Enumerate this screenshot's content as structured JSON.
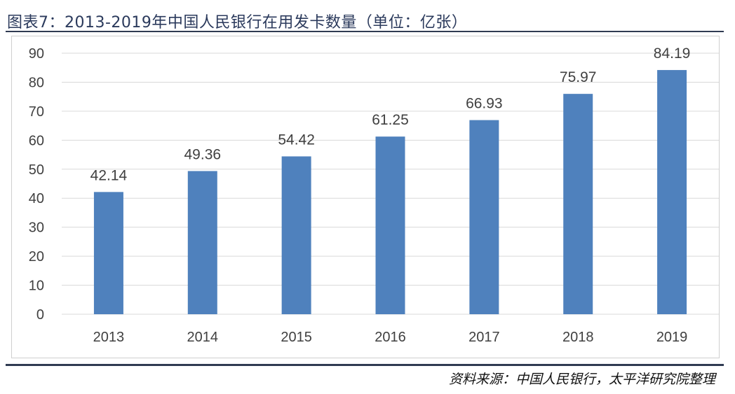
{
  "header": {
    "title": "图表7：2013-2019年中国人民银行在用发卡数量（单位：亿张）"
  },
  "footer": {
    "source": "资料来源：中国人民银行，太平洋研究院整理"
  },
  "chart_data": {
    "type": "bar",
    "title": "",
    "xlabel": "",
    "ylabel": "",
    "categories": [
      "2013",
      "2014",
      "2015",
      "2016",
      "2017",
      "2018",
      "2019"
    ],
    "values": [
      42.14,
      49.36,
      54.42,
      61.25,
      66.93,
      75.97,
      84.19
    ],
    "value_labels": [
      "42.14",
      "49.36",
      "54.42",
      "61.25",
      "66.93",
      "75.97",
      "84.19"
    ],
    "ylim": [
      0,
      90
    ],
    "yticks": [
      "0",
      "10",
      "20",
      "30",
      "40",
      "50",
      "60",
      "70",
      "80",
      "90"
    ],
    "grid": true,
    "legend": "none",
    "bar_color": "#4f81bd",
    "grid_color": "#d9d9d9",
    "text_color": "#404040"
  }
}
